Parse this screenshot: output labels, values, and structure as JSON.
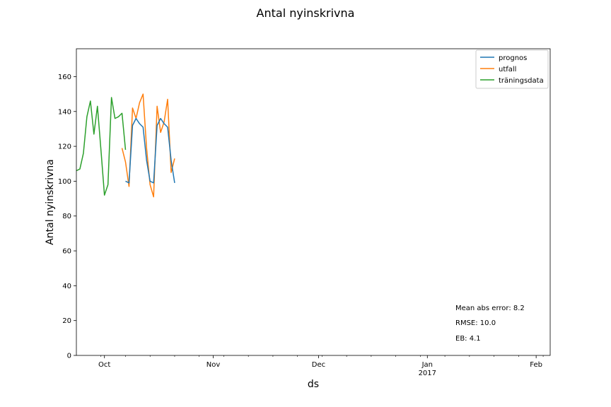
{
  "chart_data": {
    "type": "line",
    "title": "Antal nyinskrivna",
    "xlabel": "ds",
    "ylabel": "Antal nyinskrivna",
    "xlim": [
      "2016-09-23",
      "2017-02-05"
    ],
    "ylim": [
      0,
      176
    ],
    "y_ticks": [
      0,
      20,
      40,
      60,
      80,
      100,
      120,
      140,
      160
    ],
    "x_major_ticks": [
      {
        "date": "2016-10-01",
        "label": "Oct",
        "sublabel": ""
      },
      {
        "date": "2016-11-01",
        "label": "Nov",
        "sublabel": ""
      },
      {
        "date": "2016-12-01",
        "label": "Dec",
        "sublabel": ""
      },
      {
        "date": "2017-01-01",
        "label": "Jan",
        "sublabel": "2017"
      },
      {
        "date": "2017-02-01",
        "label": "Feb",
        "sublabel": ""
      }
    ],
    "x_minor_tick_interval_days": 7,
    "grid": false,
    "legend_position": "top-right",
    "series": [
      {
        "name": "prognos",
        "color": "#1f77b4",
        "points": [
          [
            "2016-10-07",
            100
          ],
          [
            "2016-10-08",
            99
          ],
          [
            "2016-10-09",
            132
          ],
          [
            "2016-10-10",
            136
          ],
          [
            "2016-10-11",
            133
          ],
          [
            "2016-10-12",
            131
          ],
          [
            "2016-10-13",
            112
          ],
          [
            "2016-10-14",
            100
          ],
          [
            "2016-10-15",
            99
          ],
          [
            "2016-10-16",
            132
          ],
          [
            "2016-10-17",
            136
          ],
          [
            "2016-10-18",
            133
          ],
          [
            "2016-10-19",
            131
          ],
          [
            "2016-10-20",
            112
          ],
          [
            "2016-10-21",
            99
          ]
        ]
      },
      {
        "name": "utfall",
        "color": "#ff7f0e",
        "points": [
          [
            "2016-10-06",
            119
          ],
          [
            "2016-10-07",
            111
          ],
          [
            "2016-10-08",
            97
          ],
          [
            "2016-10-09",
            142
          ],
          [
            "2016-10-10",
            136
          ],
          [
            "2016-10-11",
            145
          ],
          [
            "2016-10-12",
            150
          ],
          [
            "2016-10-13",
            119
          ],
          [
            "2016-10-14",
            98
          ],
          [
            "2016-10-15",
            91
          ],
          [
            "2016-10-16",
            143
          ],
          [
            "2016-10-17",
            128
          ],
          [
            "2016-10-18",
            134
          ],
          [
            "2016-10-19",
            147
          ],
          [
            "2016-10-20",
            105
          ],
          [
            "2016-10-21",
            113
          ]
        ]
      },
      {
        "name": "träningsdata",
        "color": "#2ca02c",
        "points": [
          [
            "2016-09-23",
            106
          ],
          [
            "2016-09-24",
            107
          ],
          [
            "2016-09-25",
            116
          ],
          [
            "2016-09-26",
            137
          ],
          [
            "2016-09-27",
            146
          ],
          [
            "2016-09-28",
            127
          ],
          [
            "2016-09-29",
            143
          ],
          [
            "2016-09-30",
            118
          ],
          [
            "2016-10-01",
            92
          ],
          [
            "2016-10-02",
            98
          ],
          [
            "2016-10-03",
            148
          ],
          [
            "2016-10-04",
            136
          ],
          [
            "2016-10-05",
            137
          ],
          [
            "2016-10-06",
            139
          ],
          [
            "2016-10-07",
            118
          ]
        ]
      }
    ],
    "annotations": [
      "Mean abs error: 8.2",
      "RMSE: 10.0",
      "EB: 4.1"
    ]
  }
}
